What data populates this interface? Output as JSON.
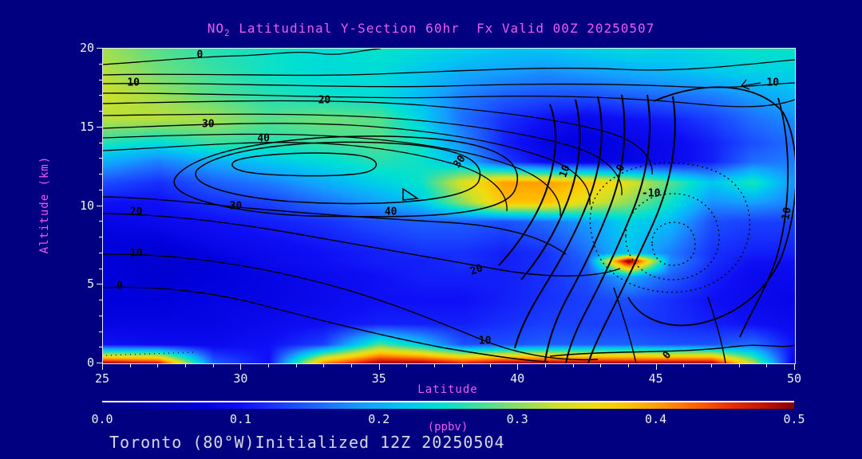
{
  "title": {
    "part1": "NO",
    "sub": "2",
    "part2": " Latitudinal Y-Section 60hr  Fx Valid 00Z 20250507"
  },
  "footer_text": "Toronto (80°W)Initialized 12Z 20250504",
  "axes": {
    "x_label": "Latitude",
    "y_label": "Altitude (km)"
  },
  "colors": {
    "background": "#000080",
    "title_text": "#ee5cee",
    "axis_label_text": "#ee5cee",
    "tick_text": "#f0f0f0",
    "footer_text": "#d8d8e4",
    "contour_line": "#000000",
    "plot_border": "#e8e8ee"
  },
  "chart_data": {
    "type": "heatmap",
    "title": "NO2 Latitudinal Y-Section 60hr  Fx Valid 00Z 20250507",
    "xlabel": "Latitude",
    "ylabel": "Altitude (km)",
    "xlim": [
      25,
      50
    ],
    "ylim": [
      0,
      20
    ],
    "x_ticks": [
      25,
      30,
      35,
      40,
      45,
      50
    ],
    "y_ticks": [
      0,
      5,
      10,
      15,
      20
    ],
    "x_minor_step": 1,
    "y_minor_step": 1,
    "colorbar": {
      "label": "(ppbv)",
      "min": 0.0,
      "max": 0.5,
      "ticks": [
        "0.0",
        "0.1",
        "0.2",
        "0.3",
        "0.4",
        "0.5"
      ]
    },
    "colormap": [
      [
        0.0,
        "#000089"
      ],
      [
        0.04,
        "#0000b4"
      ],
      [
        0.07,
        "#0000dc"
      ],
      [
        0.1,
        "#0f0ff5"
      ],
      [
        0.13,
        "#1940ff"
      ],
      [
        0.16,
        "#1e6eff"
      ],
      [
        0.19,
        "#14a0ff"
      ],
      [
        0.22,
        "#00c8f0"
      ],
      [
        0.245,
        "#00e0d2"
      ],
      [
        0.27,
        "#3cdfa0"
      ],
      [
        0.3,
        "#8ade62"
      ],
      [
        0.33,
        "#cfe028"
      ],
      [
        0.355,
        "#efdc12"
      ],
      [
        0.38,
        "#ffc300"
      ],
      [
        0.405,
        "#ff9600"
      ],
      [
        0.43,
        "#ff6000"
      ],
      [
        0.455,
        "#eb2d00"
      ],
      [
        0.48,
        "#c31000"
      ],
      [
        0.5,
        "#8c0000"
      ]
    ],
    "field": {
      "units": "ppbv",
      "lat": [
        25,
        27,
        29,
        31,
        33,
        35,
        36.5,
        38,
        39.5,
        41,
        42.5,
        44,
        45.5,
        47,
        48.5,
        50
      ],
      "alt": [
        20,
        18.5,
        17,
        15.5,
        14,
        12.8,
        11.5,
        10.2,
        9,
        7,
        6.5,
        5.5,
        4,
        2.5,
        1.2,
        0
      ],
      "values": [
        [
          0.31,
          0.28,
          0.26,
          0.25,
          0.24,
          0.25,
          0.24,
          0.23,
          0.22,
          0.22,
          0.23,
          0.24,
          0.23,
          0.24,
          0.25,
          0.25
        ],
        [
          0.32,
          0.29,
          0.27,
          0.25,
          0.24,
          0.24,
          0.22,
          0.2,
          0.19,
          0.18,
          0.19,
          0.2,
          0.21,
          0.22,
          0.23,
          0.23
        ],
        [
          0.33,
          0.31,
          0.28,
          0.26,
          0.25,
          0.24,
          0.21,
          0.17,
          0.15,
          0.14,
          0.14,
          0.15,
          0.16,
          0.17,
          0.19,
          0.21
        ],
        [
          0.32,
          0.32,
          0.31,
          0.28,
          0.29,
          0.28,
          0.23,
          0.16,
          0.12,
          0.1,
          0.09,
          0.1,
          0.11,
          0.13,
          0.16,
          0.18
        ],
        [
          0.26,
          0.24,
          0.27,
          0.26,
          0.27,
          0.28,
          0.25,
          0.18,
          0.11,
          0.08,
          0.07,
          0.08,
          0.09,
          0.11,
          0.14,
          0.16
        ],
        [
          0.2,
          0.17,
          0.2,
          0.22,
          0.24,
          0.26,
          0.25,
          0.21,
          0.13,
          0.09,
          0.08,
          0.08,
          0.09,
          0.11,
          0.16,
          0.17
        ],
        [
          0.14,
          0.12,
          0.15,
          0.17,
          0.2,
          0.23,
          0.25,
          0.34,
          0.4,
          0.4,
          0.38,
          0.34,
          0.28,
          0.22,
          0.26,
          0.18
        ],
        [
          0.1,
          0.1,
          0.12,
          0.13,
          0.16,
          0.19,
          0.22,
          0.3,
          0.38,
          0.38,
          0.34,
          0.3,
          0.25,
          0.18,
          0.19,
          0.17
        ],
        [
          0.08,
          0.09,
          0.1,
          0.11,
          0.12,
          0.14,
          0.15,
          0.15,
          0.14,
          0.16,
          0.19,
          0.23,
          0.21,
          0.14,
          0.13,
          0.13
        ],
        [
          0.07,
          0.06,
          0.08,
          0.09,
          0.1,
          0.11,
          0.12,
          0.12,
          0.11,
          0.12,
          0.16,
          0.22,
          0.17,
          0.12,
          0.11,
          0.11
        ],
        [
          0.07,
          0.06,
          0.07,
          0.09,
          0.1,
          0.11,
          0.11,
          0.12,
          0.11,
          0.12,
          0.15,
          0.52,
          0.18,
          0.12,
          0.1,
          0.1
        ],
        [
          0.07,
          0.06,
          0.07,
          0.08,
          0.09,
          0.1,
          0.11,
          0.11,
          0.11,
          0.12,
          0.14,
          0.2,
          0.15,
          0.11,
          0.09,
          0.09
        ],
        [
          0.07,
          0.07,
          0.08,
          0.08,
          0.09,
          0.1,
          0.1,
          0.1,
          0.11,
          0.12,
          0.13,
          0.14,
          0.12,
          0.1,
          0.09,
          0.08
        ],
        [
          0.08,
          0.08,
          0.08,
          0.09,
          0.1,
          0.11,
          0.11,
          0.11,
          0.12,
          0.13,
          0.13,
          0.13,
          0.12,
          0.11,
          0.1,
          0.09
        ],
        [
          0.1,
          0.09,
          0.09,
          0.1,
          0.13,
          0.28,
          0.22,
          0.14,
          0.14,
          0.15,
          0.15,
          0.15,
          0.14,
          0.14,
          0.16,
          0.1
        ],
        [
          0.5,
          0.48,
          0.15,
          0.1,
          0.42,
          0.5,
          0.5,
          0.47,
          0.5,
          0.5,
          0.5,
          0.5,
          0.5,
          0.5,
          0.32,
          0.07
        ]
      ]
    },
    "line_contours": {
      "interval": 5,
      "labeled_levels": [
        -10,
        0,
        10,
        20,
        30,
        40
      ],
      "negative_style": "dotted",
      "labels": [
        {
          "lat": 28.5,
          "alt": 19.6,
          "text": "0",
          "rot": 0
        },
        {
          "lat": 26.1,
          "alt": 17.8,
          "text": "10",
          "rot": 0
        },
        {
          "lat": 33.0,
          "alt": 16.7,
          "text": "20",
          "rot": 0
        },
        {
          "lat": 28.8,
          "alt": 15.2,
          "text": "30",
          "rot": 0
        },
        {
          "lat": 30.8,
          "alt": 14.3,
          "text": "40",
          "rot": 0
        },
        {
          "lat": 37.9,
          "alt": 12.8,
          "text": "30",
          "rot": -55
        },
        {
          "lat": 35.4,
          "alt": 9.6,
          "text": "40",
          "rot": 0
        },
        {
          "lat": 29.8,
          "alt": 10.0,
          "text": "30",
          "rot": 0
        },
        {
          "lat": 26.2,
          "alt": 9.6,
          "text": "20",
          "rot": 0
        },
        {
          "lat": 26.2,
          "alt": 7.0,
          "text": "10",
          "rot": 0
        },
        {
          "lat": 25.6,
          "alt": 4.9,
          "text": "0",
          "rot": 0
        },
        {
          "lat": 38.5,
          "alt": 5.9,
          "text": "20",
          "rot": -20
        },
        {
          "lat": 38.8,
          "alt": 1.4,
          "text": "10",
          "rot": 0
        },
        {
          "lat": 41.7,
          "alt": 12.2,
          "text": "10",
          "rot": -70
        },
        {
          "lat": 43.7,
          "alt": 12.4,
          "text": "0",
          "rot": -65
        },
        {
          "lat": 44.8,
          "alt": 10.8,
          "text": "-10",
          "rot": 0
        },
        {
          "lat": 49.2,
          "alt": 17.8,
          "text": "10",
          "rot": 0
        },
        {
          "lat": 45.4,
          "alt": 0.5,
          "text": "0",
          "rot": -50
        },
        {
          "lat": 49.7,
          "alt": 9.5,
          "text": "10",
          "rot": -80
        }
      ]
    }
  }
}
